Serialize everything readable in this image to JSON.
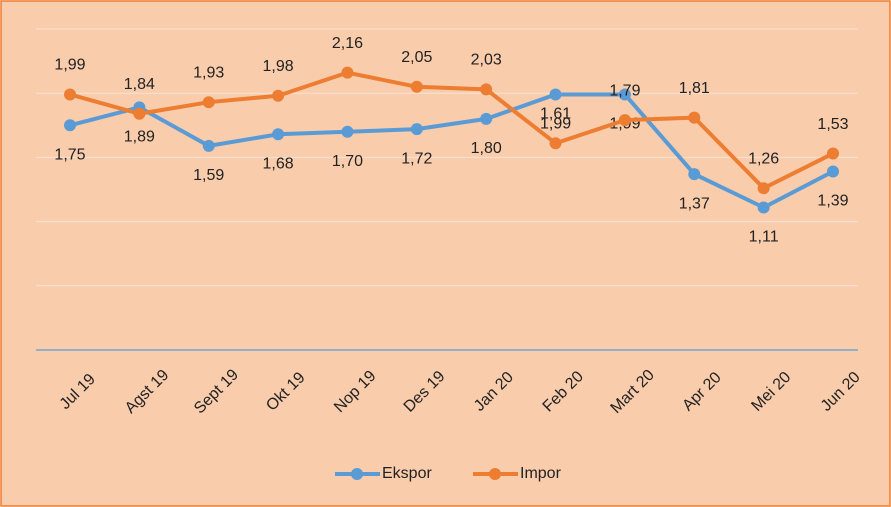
{
  "chart_data": {
    "type": "line",
    "categories": [
      "Jul 19",
      "Agst 19",
      "Sept 19",
      "Okt 19",
      "Nop 19",
      "Des 19",
      "Jan 20",
      "Feb 20",
      "Mart 20",
      "Apr 20",
      "Mei 20",
      "Jun 20"
    ],
    "series": [
      {
        "name": "Ekspor",
        "color": "#5b9bd5",
        "values": [
          1.75,
          1.89,
          1.59,
          1.68,
          1.7,
          1.72,
          1.8,
          1.99,
          1.99,
          1.37,
          1.11,
          1.39
        ],
        "value_labels": [
          "1,75",
          "1,89",
          "1,59",
          "1,68",
          "1,70",
          "1,72",
          "1,80",
          "1,99",
          "1,99",
          "1,37",
          "1,11",
          "1,39"
        ]
      },
      {
        "name": "Impor",
        "color": "#ed7d31",
        "values": [
          1.99,
          1.84,
          1.93,
          1.98,
          2.16,
          2.05,
          2.03,
          1.61,
          1.79,
          1.81,
          1.26,
          1.53
        ],
        "value_labels": [
          "1,99",
          "1,84",
          "1,93",
          "1,98",
          "2,16",
          "2,05",
          "2,03",
          "1,61",
          "1,79",
          "1,81",
          "1,26",
          "1,53"
        ]
      }
    ],
    "ylim": [
      0,
      2.5
    ],
    "yticks": [
      0,
      0.5,
      1,
      1.5,
      2,
      2.5
    ],
    "grid": true,
    "legend": "bottom"
  }
}
